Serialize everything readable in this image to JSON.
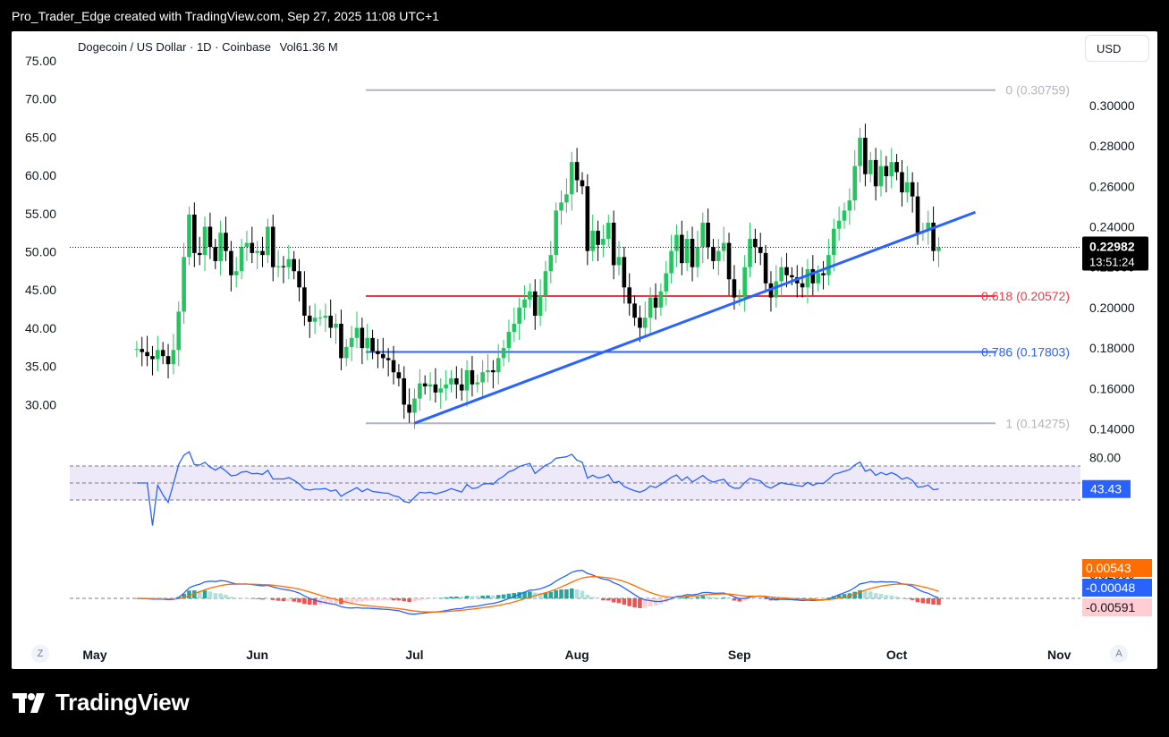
{
  "header": {
    "text": "Pro_Trader_Edge created with TradingView.com, Sep 27, 2025 11:08 UTC+1"
  },
  "symbol": {
    "title": "Dogecoin / US Dollar · 1D · Coinbase",
    "volume_label": "Vol",
    "volume_value": "61.36 M"
  },
  "currency_button": "USD",
  "corner_left": "Z",
  "corner_right": "A",
  "footer": {
    "brand": "TradingView"
  },
  "colors": {
    "up": "#22c55e",
    "down": "#000000",
    "trendline": "#2962ff",
    "fib_618": "#f23645",
    "fib_786": "#2962ff",
    "fib_gray": "#b2b5be",
    "rsi": "#2962ff",
    "rsi_band": "#ede9f8",
    "macd": "#2962ff",
    "signal": "#ff6d00",
    "hist_up": "#26a69a",
    "hist_up_light": "#b2dfdb",
    "hist_down": "#ef5350",
    "hist_down_light": "#ffcdd2"
  },
  "chart_data": {
    "type": "candlestick",
    "right_axis_ticks": [
      "0.30000",
      "0.28000",
      "0.26000",
      "0.24000",
      "0.22000",
      "0.20000",
      "0.18000",
      "0.16000",
      "0.14000"
    ],
    "left_axis_ticks": [
      "75.00",
      "70.00",
      "65.00",
      "60.00",
      "55.00",
      "50.00",
      "45.00",
      "40.00",
      "35.00",
      "30.00"
    ],
    "x_labels": [
      "May",
      "Jun",
      "Jul",
      "Aug",
      "Sep",
      "Oct",
      "Nov"
    ],
    "x_label_days": [
      0,
      31,
      61,
      92,
      123,
      153,
      184
    ],
    "current_price": "0.22982",
    "countdown": "13:51:24",
    "fib_levels": [
      {
        "label": "0 (0.30759)",
        "value": 0.30759
      },
      {
        "label": "0.618 (0.20572)",
        "value": 0.20572
      },
      {
        "label": "0.786 (0.17803)",
        "value": 0.17803
      },
      {
        "label": "1 (0.14275)",
        "value": 0.14275
      }
    ],
    "trendline": {
      "start": [
        "2025-06-22",
        0.1428
      ],
      "end": [
        "2025-10-07",
        0.2472
      ]
    },
    "candles_start_date": "2025-04-30",
    "closes": [
      0.1795,
      0.178,
      0.176,
      0.1745,
      0.179,
      0.176,
      0.172,
      0.179,
      0.198,
      0.225,
      0.246,
      0.227,
      0.226,
      0.24,
      0.23,
      0.223,
      0.237,
      0.228,
      0.216,
      0.218,
      0.23,
      0.232,
      0.227,
      0.228,
      0.226,
      0.24,
      0.22,
      0.2205,
      0.22,
      0.224,
      0.218,
      0.21,
      0.196,
      0.193,
      0.195,
      0.195,
      0.196,
      0.19,
      0.192,
      0.175,
      0.1805,
      0.185,
      0.19,
      0.18,
      0.185,
      0.1785,
      0.177,
      0.175,
      0.174,
      0.168,
      0.165,
      0.152,
      0.148,
      0.155,
      0.1625,
      0.161,
      0.162,
      0.158,
      0.16,
      0.162,
      0.165,
      0.162,
      0.159,
      0.169,
      0.162,
      0.163,
      0.168,
      0.169,
      0.168,
      0.175,
      0.18,
      0.188,
      0.192,
      0.2,
      0.204,
      0.208,
      0.196,
      0.206,
      0.218,
      0.226,
      0.248,
      0.252,
      0.256,
      0.272,
      0.263,
      0.26,
      0.228,
      0.238,
      0.231,
      0.234,
      0.242,
      0.221,
      0.225,
      0.21,
      0.202,
      0.195,
      0.19,
      0.195,
      0.205,
      0.2,
      0.208,
      0.217,
      0.228,
      0.236,
      0.222,
      0.234,
      0.22,
      0.23,
      0.242,
      0.23,
      0.223,
      0.228,
      0.232,
      0.214,
      0.205,
      0.205,
      0.22,
      0.234,
      0.23,
      0.227,
      0.212,
      0.205,
      0.213,
      0.22,
      0.216,
      0.215,
      0.212,
      0.21,
      0.219,
      0.212,
      0.217,
      0.216,
      0.226,
      0.239,
      0.243,
      0.248,
      0.253,
      0.27,
      0.284,
      0.266,
      0.273,
      0.26,
      0.27,
      0.265,
      0.272,
      0.267,
      0.257,
      0.262,
      0.255,
      0.237,
      0.238,
      0.242,
      0.228,
      0.2298
    ],
    "rsi": {
      "upper_band": 70,
      "lower_band": 30,
      "value_label": "43.43",
      "tick": "80.00"
    },
    "macd": {
      "tick": "0.02000",
      "signal_label": "0.00543",
      "macd_label": "-0.00048",
      "hist_label": "-0.00591"
    }
  }
}
